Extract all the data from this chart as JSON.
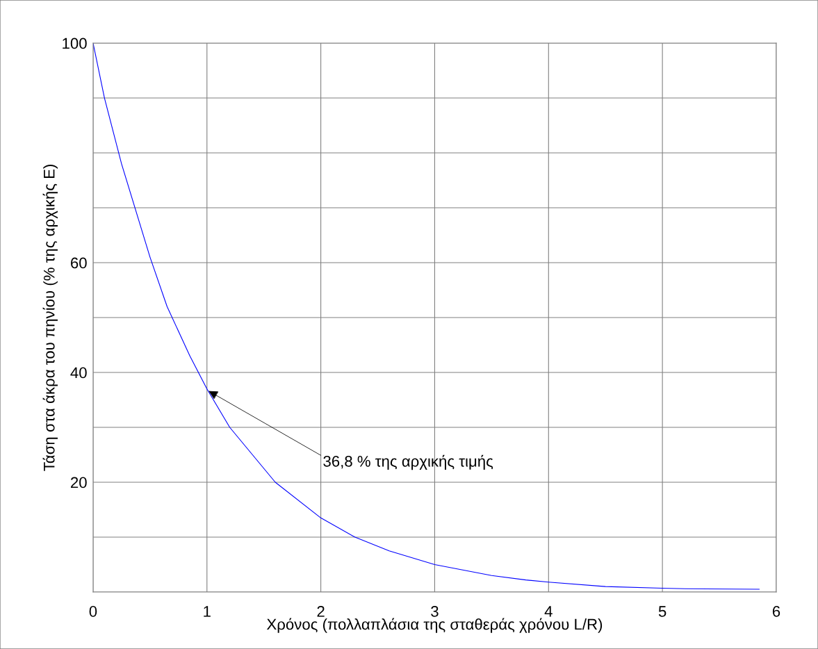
{
  "chart_data": {
    "type": "line",
    "xlabel": "Χρόνος (πολλαπλάσια της σταθεράς χρόνου L/R)",
    "ylabel": "Τάση στα άκρα του πηνίου (% της αρχικής E)",
    "x": [
      0,
      0.1,
      0.25,
      0.5,
      0.65,
      0.85,
      1,
      1.2,
      1.4,
      1.6,
      2,
      2.3,
      2.6,
      3,
      3.5,
      3.8,
      4,
      4.5,
      5,
      5.2,
      5.85
    ],
    "series": [
      {
        "color": "#0000ff",
        "values": [
          100,
          90,
          78,
          61,
          52,
          43,
          37,
          30,
          25,
          20,
          13.5,
          10,
          7.5,
          5,
          3,
          2.2,
          1.8,
          1,
          0.7,
          0.6,
          0.5
        ]
      }
    ],
    "xlim": [
      0,
      6
    ],
    "ylim": [
      0,
      100
    ],
    "xticks": [
      0,
      1,
      2,
      3,
      4,
      5,
      6
    ],
    "yticks": [
      {
        "value": 0,
        "label": null
      },
      {
        "value": 10,
        "label": null
      },
      20,
      {
        "value": 30,
        "label": null
      },
      40,
      {
        "value": 50,
        "label": null
      },
      60,
      {
        "value": 70,
        "label": null
      },
      {
        "value": 80,
        "label": null
      },
      {
        "value": 90,
        "label": null
      },
      100
    ],
    "grid": true,
    "annotations": [
      {
        "text": "36,8 % της αρχικής τιμής",
        "x": 1,
        "y": 36.8
      }
    ]
  }
}
